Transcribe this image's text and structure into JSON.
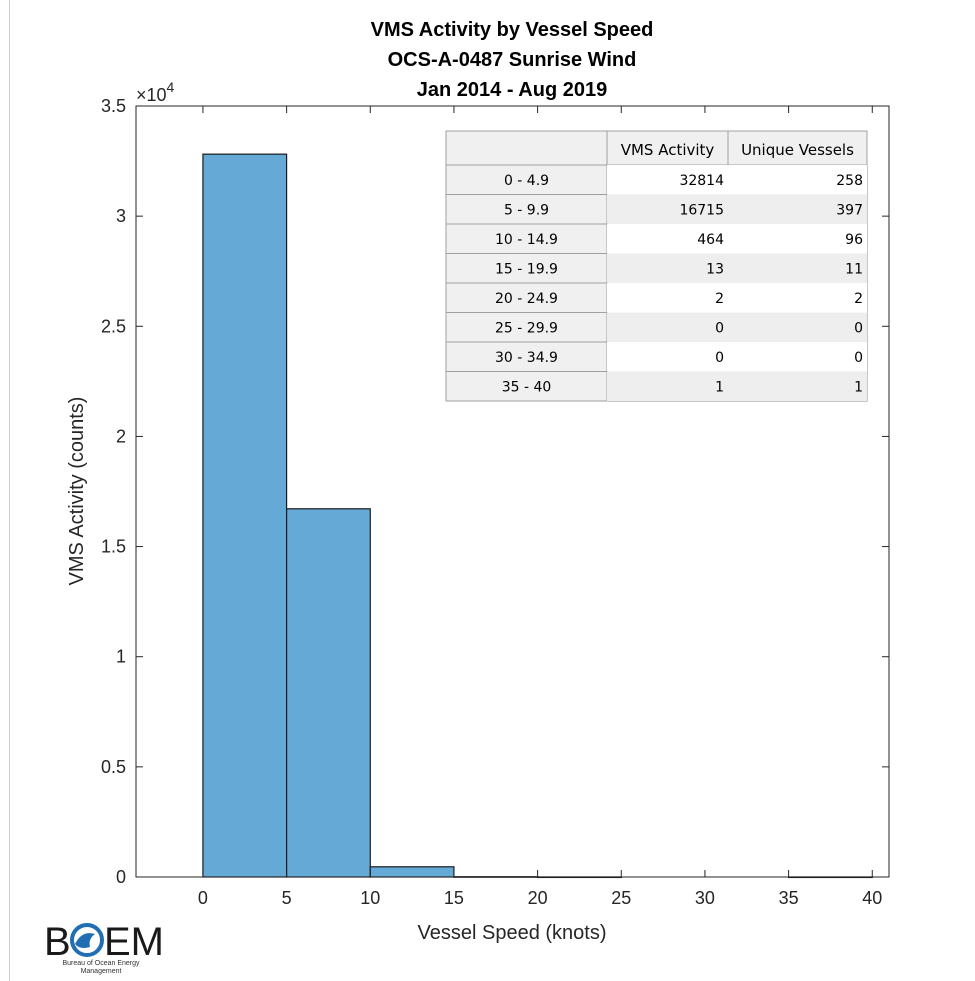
{
  "chart_data": {
    "type": "bar",
    "title_lines": [
      "VMS Activity by Vessel Speed",
      "OCS-A-0487 Sunrise Wind",
      "Jan 2014 - Aug 2019"
    ],
    "xlabel": "Vessel Speed (knots)",
    "ylabel": "VMS Activity (counts)",
    "y_exponent_label": "×10",
    "y_exponent_power": "4",
    "xlim": [
      -4,
      41
    ],
    "ylim": [
      0,
      35000
    ],
    "x_ticks": [
      "0",
      "5",
      "10",
      "15",
      "20",
      "25",
      "30",
      "35",
      "40"
    ],
    "x_tick_values": [
      0,
      5,
      10,
      15,
      20,
      25,
      30,
      35,
      40
    ],
    "y_ticks": [
      "0",
      "0.5",
      "1",
      "1.5",
      "2",
      "2.5",
      "3",
      "3.5"
    ],
    "y_tick_values": [
      0,
      5000,
      10000,
      15000,
      20000,
      25000,
      30000,
      35000
    ],
    "bins": [
      {
        "start": 0,
        "end": 5,
        "value": 32814
      },
      {
        "start": 5,
        "end": 10,
        "value": 16715
      },
      {
        "start": 10,
        "end": 15,
        "value": 464
      },
      {
        "start": 15,
        "end": 20,
        "value": 13
      },
      {
        "start": 20,
        "end": 25,
        "value": 2
      },
      {
        "start": 25,
        "end": 30,
        "value": 0
      },
      {
        "start": 30,
        "end": 35,
        "value": 0
      },
      {
        "start": 35,
        "end": 40,
        "value": 1
      }
    ],
    "bar_color": "#65a9d7",
    "grid": false
  },
  "summary_table": {
    "headers": [
      "",
      "VMS Activity",
      "Unique Vessels"
    ],
    "rows": [
      [
        "0 - 4.9",
        "32814",
        "258"
      ],
      [
        "5 - 9.9",
        "16715",
        "397"
      ],
      [
        "10 - 14.9",
        "464",
        "96"
      ],
      [
        "15 - 19.9",
        "13",
        "11"
      ],
      [
        "20 - 24.9",
        "2",
        "2"
      ],
      [
        "25 - 29.9",
        "0",
        "0"
      ],
      [
        "30 - 34.9",
        "0",
        "0"
      ],
      [
        "35 - 40",
        "1",
        "1"
      ]
    ]
  },
  "logo": {
    "letters_left": "B",
    "letters_right": "EM",
    "subtitle_lines": [
      "Bureau of Ocean Energy",
      "Management"
    ],
    "accent_color": "#1f6fb2"
  }
}
